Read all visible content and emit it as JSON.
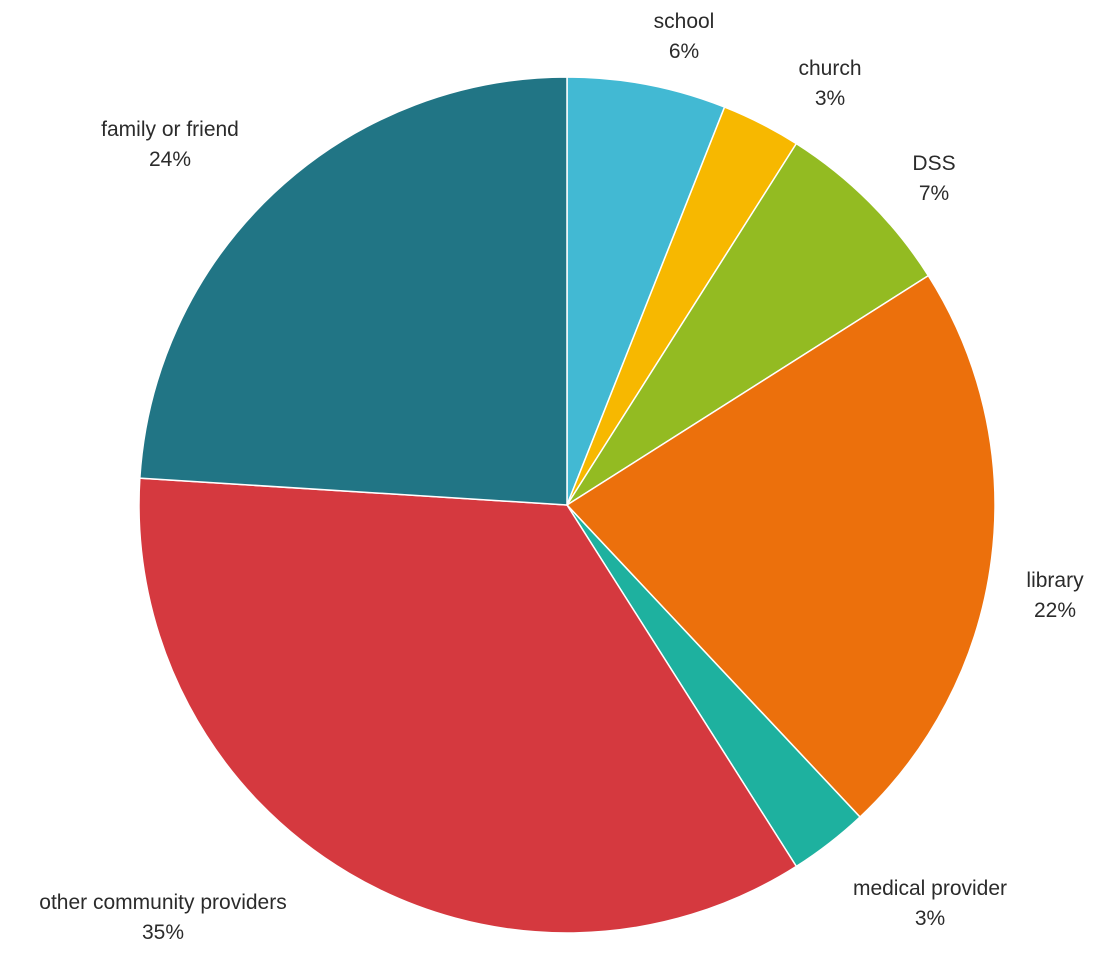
{
  "chart_data": {
    "type": "pie",
    "title": "",
    "start_angle_deg": 0,
    "direction": "clockwise",
    "slices": [
      {
        "label": "school",
        "value": 6,
        "value_label": "6%",
        "color": "#42b9d3"
      },
      {
        "label": "church",
        "value": 3,
        "value_label": "3%",
        "color": "#f7b800"
      },
      {
        "label": "DSS",
        "value": 7,
        "value_label": "7%",
        "color": "#93bb22"
      },
      {
        "label": "library",
        "value": 22,
        "value_label": "22%",
        "color": "#ec700c"
      },
      {
        "label": "medical provider",
        "value": 3,
        "value_label": "3%",
        "color": "#1eb19f"
      },
      {
        "label": "other community providers",
        "value": 35,
        "value_label": "35%",
        "color": "#d5393f"
      },
      {
        "label": "family or friend",
        "value": 24,
        "value_label": "24%",
        "color": "#217585"
      }
    ]
  }
}
